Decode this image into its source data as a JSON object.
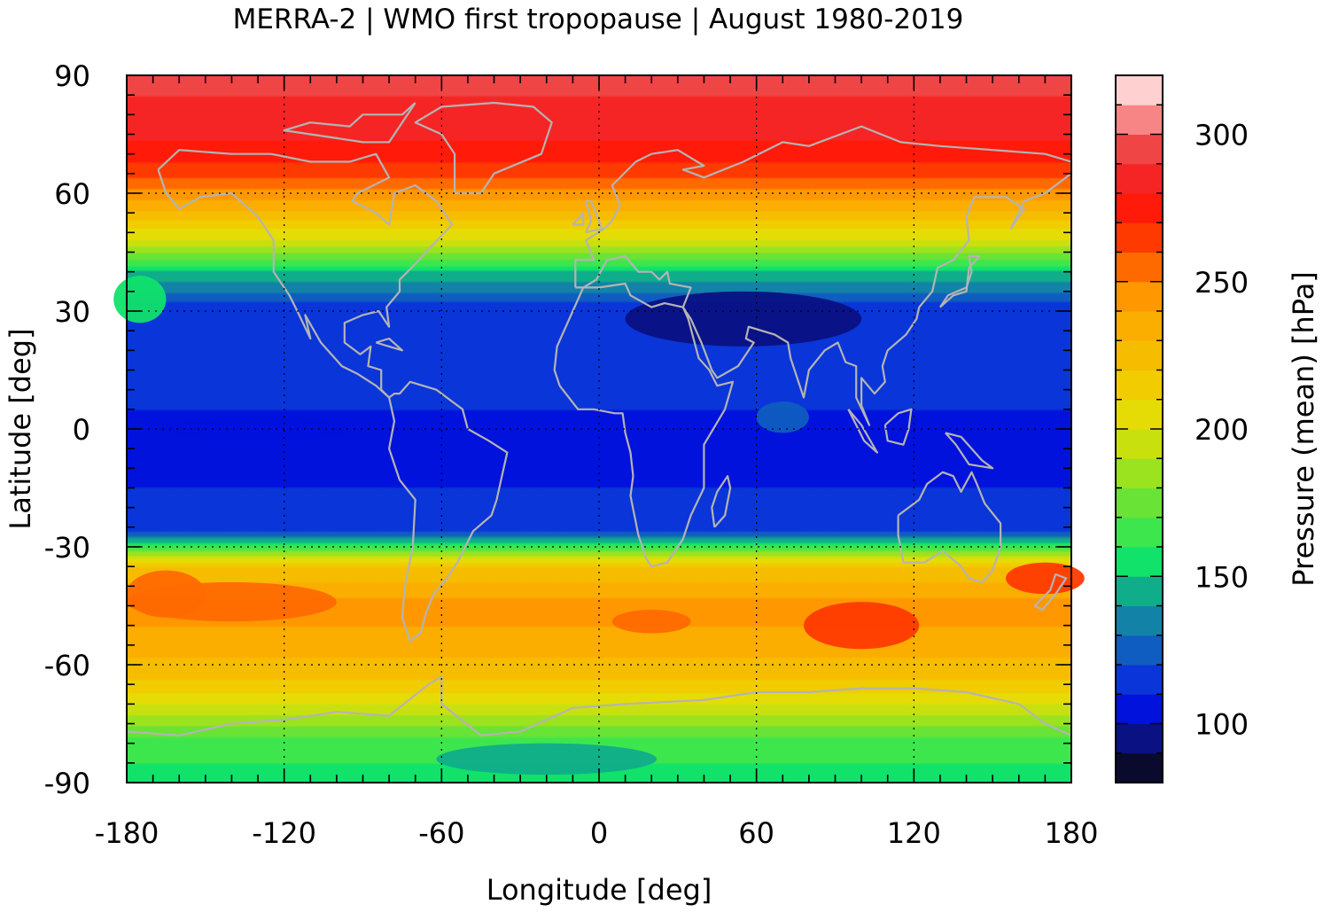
{
  "chart_data": {
    "type": "heatmap",
    "title": "MERRA-2 | WMO first tropopause | August 1980-2019",
    "xlabel": "Longitude [deg]",
    "ylabel": "Latitude [deg]",
    "colorbar_label": "Pressure (mean) [hPa]",
    "xlim": [
      -180,
      180
    ],
    "ylim": [
      -90,
      90
    ],
    "xticks": [
      -180,
      -120,
      -60,
      0,
      60,
      120,
      180
    ],
    "yticks": [
      90,
      60,
      30,
      0,
      -30,
      -60,
      -90
    ],
    "colorbar_range": [
      80,
      320
    ],
    "colorbar_ticks": [
      100,
      150,
      200,
      250,
      300
    ],
    "colorbar_levels": [
      {
        "from": 80,
        "to": 90,
        "color": "#0a0a2e"
      },
      {
        "from": 90,
        "to": 100,
        "color": "#0a1283"
      },
      {
        "from": 100,
        "to": 110,
        "color": "#0012dc"
      },
      {
        "from": 110,
        "to": 120,
        "color": "#0a35d8"
      },
      {
        "from": 120,
        "to": 130,
        "color": "#0f5dc0"
      },
      {
        "from": 130,
        "to": 140,
        "color": "#1283a6"
      },
      {
        "from": 140,
        "to": 150,
        "color": "#10ad8a"
      },
      {
        "from": 150,
        "to": 160,
        "color": "#10e26a"
      },
      {
        "from": 160,
        "to": 170,
        "color": "#3de64d"
      },
      {
        "from": 170,
        "to": 180,
        "color": "#69e335"
      },
      {
        "from": 180,
        "to": 190,
        "color": "#9be21f"
      },
      {
        "from": 190,
        "to": 200,
        "color": "#c9e00f"
      },
      {
        "from": 200,
        "to": 210,
        "color": "#e6dc05"
      },
      {
        "from": 210,
        "to": 220,
        "color": "#f0cc00"
      },
      {
        "from": 220,
        "to": 230,
        "color": "#f6bc00"
      },
      {
        "from": 230,
        "to": 240,
        "color": "#fbad00"
      },
      {
        "from": 240,
        "to": 250,
        "color": "#ff9800"
      },
      {
        "from": 250,
        "to": 260,
        "color": "#ff6a00"
      },
      {
        "from": 260,
        "to": 270,
        "color": "#ff3a00"
      },
      {
        "from": 270,
        "to": 280,
        "color": "#ff1a0a"
      },
      {
        "from": 280,
        "to": 290,
        "color": "#f52525"
      },
      {
        "from": 290,
        "to": 300,
        "color": "#f04545"
      },
      {
        "from": 300,
        "to": 310,
        "color": "#f88585"
      },
      {
        "from": 310,
        "to": 320,
        "color": "#ffd0d0"
      }
    ],
    "zonal_mean_profile": {
      "lat": [
        90,
        75,
        65,
        55,
        47,
        40,
        30,
        20,
        10,
        0,
        -10,
        -20,
        -26,
        -30,
        -35,
        -45,
        -55,
        -65,
        -72,
        -80,
        -90
      ],
      "pressure": [
        294,
        283,
        265,
        228,
        195,
        150,
        112,
        112,
        112,
        108,
        108,
        112,
        118,
        165,
        220,
        245,
        236,
        218,
        192,
        165,
        155
      ]
    },
    "grid": true,
    "coastlines": true
  }
}
